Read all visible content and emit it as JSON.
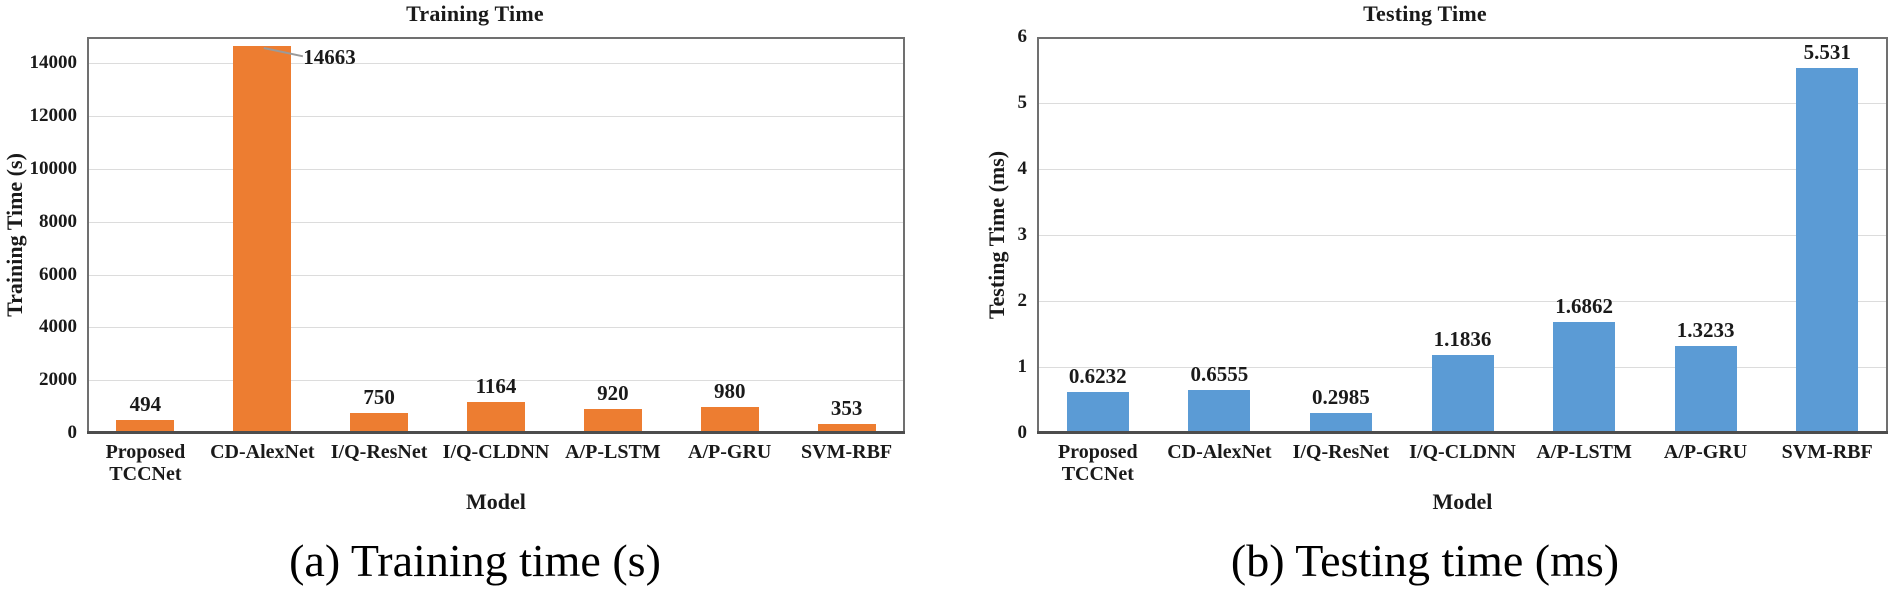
{
  "chart_data": [
    {
      "type": "bar",
      "title": "Training Time",
      "xlabel": "Model",
      "ylabel": "Training Time (s)",
      "caption": "(a) Training time (s)",
      "bar_color": "#ED7D31",
      "ylim": [
        0,
        15000
      ],
      "y_ticks": [
        0,
        2000,
        4000,
        6000,
        8000,
        10000,
        12000,
        14000
      ],
      "grid": true,
      "legend": "none",
      "categories": [
        "Proposed TCCNet",
        "CD-AlexNet",
        "I/Q-ResNet",
        "I/Q-CLDNN",
        "A/P-LSTM",
        "A/P-GRU",
        "SVM-RBF"
      ],
      "category_lines": [
        [
          "Proposed",
          "TCCNet"
        ],
        [
          "CD-AlexNet"
        ],
        [
          "I/Q-ResNet"
        ],
        [
          "I/Q-CLDNN"
        ],
        [
          "A/P-LSTM"
        ],
        [
          "A/P-GRU"
        ],
        [
          "SVM-RBF"
        ]
      ],
      "values": [
        494,
        14663,
        750,
        1164,
        920,
        980,
        353
      ],
      "value_labels": [
        "494",
        "14663",
        "750",
        "1164",
        "920",
        "980",
        "353"
      ],
      "callout_index": 1
    },
    {
      "type": "bar",
      "title": "Testing Time",
      "xlabel": "Model",
      "ylabel": "Testing Time (ms)",
      "caption": "(b) Testing time (ms)",
      "bar_color": "#5B9BD5",
      "ylim": [
        0,
        6
      ],
      "y_ticks": [
        0,
        1,
        2,
        3,
        4,
        5,
        6
      ],
      "grid": true,
      "legend": "none",
      "categories": [
        "Proposed TCCNet",
        "CD-AlexNet",
        "I/Q-ResNet",
        "I/Q-CLDNN",
        "A/P-LSTM",
        "A/P-GRU",
        "SVM-RBF"
      ],
      "category_lines": [
        [
          "Proposed",
          "TCCNet"
        ],
        [
          "CD-AlexNet"
        ],
        [
          "I/Q-ResNet"
        ],
        [
          "I/Q-CLDNN"
        ],
        [
          "A/P-LSTM"
        ],
        [
          "A/P-GRU"
        ],
        [
          "SVM-RBF"
        ]
      ],
      "values": [
        0.6232,
        0.6555,
        0.2985,
        1.1836,
        1.6862,
        1.3233,
        5.531
      ],
      "value_labels": [
        "0.6232",
        "0.6555",
        "0.2985",
        "1.1836",
        "1.6862",
        "1.3233",
        "5.531"
      ],
      "callout_index": -1
    }
  ]
}
